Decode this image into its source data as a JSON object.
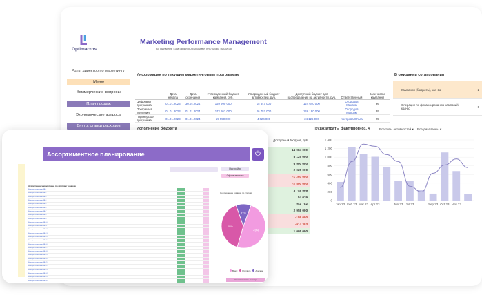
{
  "app": {
    "logo_text": "Optimacros",
    "title": "Marketing Performance Management",
    "subtitle": "на примере компании по продаже тепловых насосов",
    "role": "Роль: директор по маркетингу"
  },
  "menu": [
    {
      "label": "Меню",
      "style": "orange"
    },
    {
      "label": "Коммерческие вопросы",
      "style": "plain"
    },
    {
      "label": "План продаж",
      "style": "purple"
    },
    {
      "label": "Экономические вопросы",
      "style": "plain"
    },
    {
      "label": "Внутр. ставки расходов",
      "style": "purple"
    }
  ],
  "programs": {
    "title": "Информация по текущим маркетинговым программам",
    "headers": [
      "",
      "Дата начала",
      "Дата окончания",
      "Утвержденный бюджет кампаний, руб.",
      "Утвержденный бюджет активностей, руб.",
      "Доступный бюджет для распределения на активности, руб.",
      "Ответственный",
      "Количество кампаний"
    ],
    "rows": [
      {
        "name": "Цифровая программа",
        "start": "01.01.2023",
        "end": "30.04.2024",
        "b1": "159 990 000",
        "b2": "15 547 000",
        "b3": "124 640 000",
        "owner": "Огородов Максим",
        "count": "96"
      },
      {
        "name": "Программа усиления",
        "start": "01.01.2023",
        "end": "01.01.2024",
        "b1": "172 952 000",
        "b2": "26 752 000",
        "b3": "146 190 000",
        "owner": "Огородов Максим",
        "count": "89"
      },
      {
        "name": "Партнерская программа",
        "start": "01.01.2023",
        "end": "01.01.2024",
        "b1": "29 550 000",
        "b2": "4 624 000",
        "b3": "24 126 000",
        "owner": "Кострова Ольга",
        "count": "25"
      }
    ]
  },
  "awaiting": {
    "title": "В ожидании согласования",
    "rows": [
      {
        "label": "Кампании (бюджеты), кол-во",
        "value": "2"
      },
      {
        "label": "Операции по финансированию кампаний, кол-во",
        "value": "0"
      }
    ]
  },
  "execution": {
    "title": "Исполнение бюджета",
    "column_header": "Доступный бюджет, руб.",
    "values": [
      {
        "v": "14 984 000",
        "sign": "pos"
      },
      {
        "v": "5 125 000",
        "sign": "pos"
      },
      {
        "v": "6 900 000",
        "sign": "pos"
      },
      {
        "v": "2 025 000",
        "sign": "pos"
      },
      {
        "v": "-1 260 000",
        "sign": "neg"
      },
      {
        "v": "-2 500 000",
        "sign": "neg"
      },
      {
        "v": "3 749 999",
        "sign": "pos"
      },
      {
        "v": "54 019",
        "sign": "pos"
      },
      {
        "v": "941 782",
        "sign": "pos"
      },
      {
        "v": "2 958 000",
        "sign": "pos"
      },
      {
        "v": "-186 000",
        "sign": "neg"
      },
      {
        "v": "-914 303",
        "sign": "neg"
      },
      {
        "v": "1 005 000",
        "sign": "pos"
      }
    ]
  },
  "labor": {
    "title": "Трудозатраты факт/прогноз, ч",
    "filter1": "Все типы активностей",
    "filter2": "Все диапазоны"
  },
  "chart_data": {
    "type": "bar",
    "title": "Трудозатраты факт/прогноз, ч",
    "categories": [
      "Jan 23",
      "Feb 23",
      "Mar 23",
      "Apr 23",
      "May 23",
      "Jun 23",
      "Jul 23",
      "Aug 23",
      "Sep 23",
      "Oct 23",
      "Nov 23",
      "Dec 23"
    ],
    "tick_labels": [
      "Jan 23",
      "Feb 23",
      "Mar 23",
      "Apr 23",
      "Jun 23",
      "Jul 23",
      "Sep 23",
      "Oct 23",
      "Nov 23"
    ],
    "series": [
      {
        "type": "bar",
        "values": [
          430,
          1230,
          1080,
          1010,
          780,
          460,
          450,
          240,
          160,
          1110,
          680,
          150
        ]
      },
      {
        "type": "line",
        "values": [
          300,
          900,
          1300,
          1250,
          1060,
          900,
          330,
          200,
          630,
          820,
          960,
          760
        ]
      }
    ],
    "yticks": [
      0,
      200,
      400,
      600,
      800,
      1000,
      1200,
      1400
    ],
    "ytick_labels": [
      "0",
      "200",
      "400",
      "600",
      "800",
      "1 000",
      "1 200",
      "1 400"
    ],
    "ylim": [
      0,
      1400
    ],
    "colors": {
      "bar": "#c9c9ea",
      "line": "#8c86c4"
    }
  },
  "front": {
    "title": "Ассортиментное планирование",
    "close_icon": "power-icon",
    "settings_label": "Настройки",
    "submit_label": "Оформленного",
    "pie_title": "Соотношение товаров по статуям",
    "pie_legend": [
      "Basic",
      "Premium",
      "Average"
    ],
    "pie_slices": [
      {
        "name": "Basic",
        "value": 49,
        "label": "49%",
        "color": "#f29be0"
      },
      {
        "name": "Premium",
        "value": 40,
        "label": "40%",
        "color": "#d858a8"
      },
      {
        "name": "Average",
        "value": 11,
        "label": "11%",
        "color": "#7d66c4"
      }
    ],
    "pie_button": "Сформировать ан мир",
    "table_title": "Ассортиментная матрица по группам товаров",
    "rows": [
      "Фильтры-осушители ФВ-1",
      "Фильтры-осушители ФВ-2",
      "Фильтры-осушители ФВ-3",
      "Фильтры-осушители ФВ-4",
      "Фильтры-осушители ФВ-5",
      "Фильтры-осушители ФВ-6",
      "Фильтры-осушители ФВ-7",
      "Фильтры-осушители ФВ-8",
      "Фильтры-осушители ФВ-9",
      "Фильтры-осушители ФВ-10",
      "Фильтры-осушители ФВ-11",
      "Фильтры-осушители ФВ-12",
      "Фильтры-осушители ФВ-13",
      "Фильтры-осушители ФВ-14",
      "Фильтры-осушители ФВ-15",
      "Фильтры-осушители ФВ-16",
      "Фильтры-осушители ФВ-17",
      "Фильтры-осушители ФВ-18",
      "Фильтры-осушители ФВ-19",
      "Фильтры-осушители ФВ-20",
      "Фильтры-осушители ФВ-21",
      "Фильтры-осушители ФВ-22",
      "Фильтры-осушители ФВ-23",
      "Фильтры-осушители ФВ-24",
      "Фильтры-осушители ФВ-25",
      "Фильтры-осушители ФВ-26"
    ]
  }
}
